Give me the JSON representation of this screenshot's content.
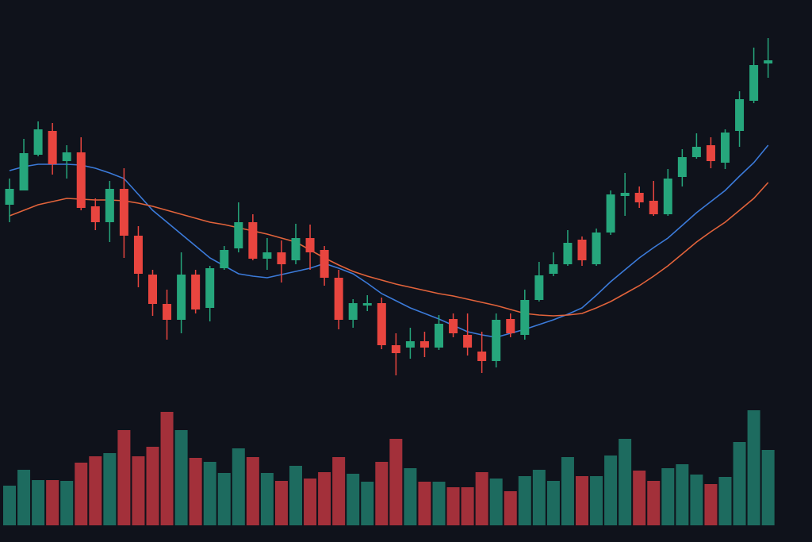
{
  "chart_data": {
    "type": "candlestick",
    "ylim": [
      0,
      683
    ],
    "volume_ylim": [
      0,
      662
    ],
    "up_color": "#26a67c",
    "down_color": "#e8453f",
    "volume_up_color": "#1d6b5f",
    "volume_down_color": "#a3303a",
    "open": [
      425,
      443,
      488,
      518,
      480,
      491,
      423,
      403,
      445,
      386,
      337,
      300,
      280,
      337,
      295,
      345,
      370,
      403,
      357,
      365,
      355,
      383,
      368,
      333,
      280,
      298,
      301,
      248,
      245,
      253,
      245,
      281,
      261,
      240,
      228,
      281,
      261,
      305,
      338,
      350,
      381,
      350,
      390,
      436,
      440,
      430,
      413,
      460,
      485,
      500,
      478,
      518,
      556,
      603
    ],
    "high": [
      458,
      508,
      530,
      528,
      500,
      510,
      433,
      455,
      471,
      398,
      343,
      318,
      365,
      343,
      348,
      373,
      428,
      413,
      383,
      380,
      401,
      400,
      373,
      343,
      306,
      311,
      308,
      263,
      270,
      265,
      286,
      288,
      288,
      265,
      288,
      288,
      318,
      353,
      365,
      393,
      385,
      395,
      443,
      465,
      448,
      455,
      470,
      495,
      515,
      510,
      520,
      568,
      623,
      635
    ],
    "low": [
      403,
      443,
      486,
      463,
      458,
      418,
      393,
      378,
      358,
      321,
      285,
      255,
      263,
      288,
      278,
      343,
      365,
      355,
      343,
      327,
      350,
      343,
      323,
      268,
      270,
      291,
      243,
      210,
      231,
      233,
      242,
      258,
      235,
      213,
      220,
      258,
      255,
      303,
      335,
      348,
      348,
      348,
      387,
      411,
      421,
      411,
      411,
      448,
      483,
      471,
      470,
      498,
      553,
      585
    ],
    "close": [
      445,
      490,
      520,
      476,
      491,
      421,
      403,
      445,
      386,
      338,
      300,
      280,
      337,
      293,
      345,
      368,
      403,
      357,
      365,
      350,
      383,
      365,
      333,
      280,
      301,
      301,
      248,
      238,
      253,
      245,
      275,
      263,
      245,
      228,
      280,
      263,
      305,
      336,
      350,
      377,
      355,
      390,
      438,
      440,
      428,
      413,
      458,
      485,
      498,
      480,
      516,
      558,
      601,
      607
    ],
    "volume": [
      50,
      70,
      57,
      57,
      56,
      79,
      87,
      91,
      120,
      87,
      99,
      143,
      120,
      85,
      80,
      66,
      97,
      86,
      66,
      56,
      75,
      59,
      67,
      86,
      65,
      55,
      80,
      109,
      72,
      55,
      55,
      48,
      48,
      67,
      59,
      43,
      62,
      70,
      56,
      86,
      62,
      62,
      88,
      109,
      69,
      56,
      72,
      77,
      64,
      52,
      61,
      105,
      145,
      95
    ],
    "series": [
      {
        "color": "#3b7ad9",
        "values": [
          468,
          473,
          476,
          476,
          476,
          475,
          471,
          465,
          458,
          438,
          418,
          403,
          388,
          373,
          358,
          348,
          338,
          335,
          333,
          337,
          341,
          345,
          351,
          345,
          338,
          326,
          313,
          304,
          295,
          288,
          281,
          273,
          265,
          261,
          258,
          263,
          268,
          274,
          280,
          287,
          295,
          311,
          328,
          343,
          358,
          371,
          383,
          399,
          415,
          429,
          443,
          461,
          478,
          500
        ]
      },
      {
        "color": "#e2633b",
        "values": [
          411,
          418,
          425,
          429,
          433,
          432,
          431,
          431,
          430,
          427,
          423,
          418,
          413,
          408,
          403,
          400,
          396,
          392,
          388,
          383,
          378,
          368,
          358,
          349,
          341,
          335,
          330,
          325,
          321,
          317,
          313,
          310,
          306,
          302,
          298,
          293,
          288,
          286,
          285,
          286,
          288,
          295,
          303,
          313,
          323,
          335,
          348,
          363,
          378,
          391,
          403,
          418,
          433,
          453
        ]
      }
    ]
  }
}
